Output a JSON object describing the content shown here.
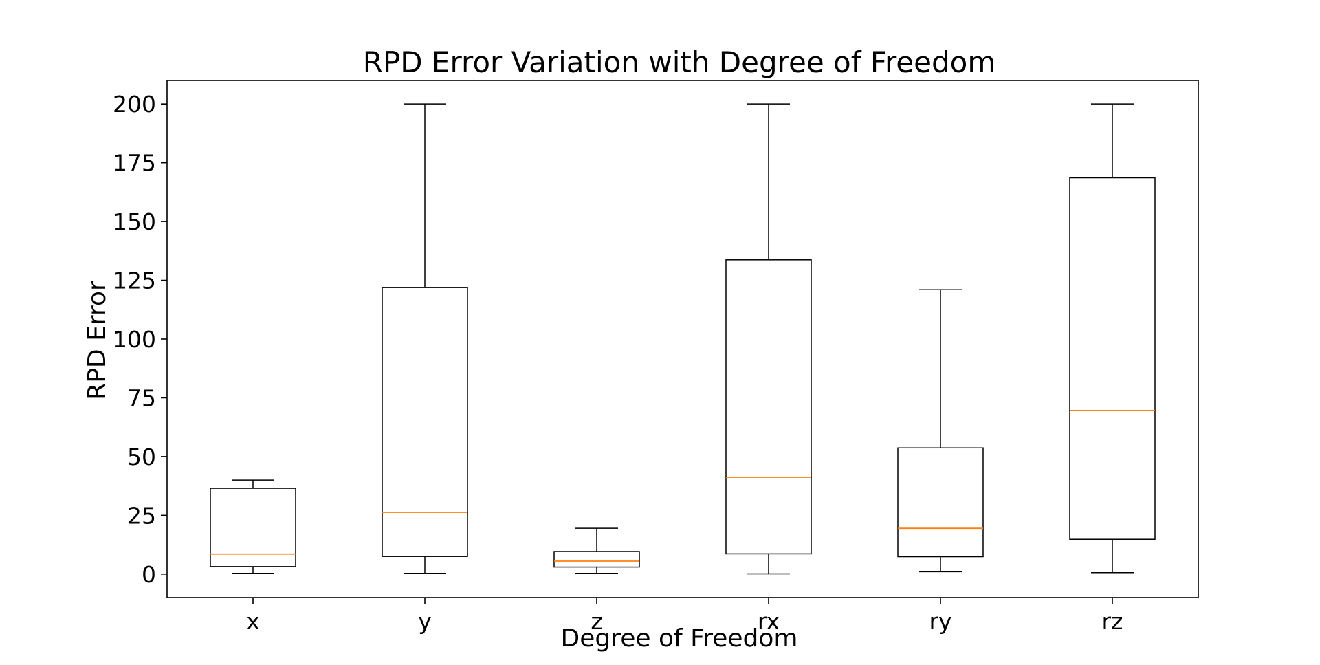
{
  "chart_data": {
    "type": "box",
    "title": "RPD Error Variation with Degree of Freedom",
    "xlabel": "Degree of Freedom",
    "ylabel": "RPD Error",
    "ylim": [
      -10,
      210
    ],
    "yticks": [
      0,
      25,
      50,
      75,
      100,
      125,
      150,
      175,
      200
    ],
    "grid": false,
    "legend": "none",
    "colors": {
      "box": "#000000",
      "median": "#ff7f0e"
    },
    "categories": [
      "x",
      "y",
      "z",
      "rx",
      "ry",
      "rz"
    ],
    "boxes": [
      {
        "label": "x",
        "whisker_low": 0.3,
        "q1": 3.2,
        "median": 8.5,
        "q3": 36.5,
        "whisker_high": 40.0
      },
      {
        "label": "y",
        "whisker_low": 0.3,
        "q1": 7.5,
        "median": 26.3,
        "q3": 121.9,
        "whisker_high": 200.0
      },
      {
        "label": "z",
        "whisker_low": 0.3,
        "q1": 3.0,
        "median": 5.5,
        "q3": 9.6,
        "whisker_high": 19.5
      },
      {
        "label": "rx",
        "whisker_low": 0.1,
        "q1": 8.6,
        "median": 41.2,
        "q3": 133.7,
        "whisker_high": 200.0
      },
      {
        "label": "ry",
        "whisker_low": 1.0,
        "q1": 7.4,
        "median": 19.5,
        "q3": 53.7,
        "whisker_high": 121.0
      },
      {
        "label": "rz",
        "whisker_low": 0.6,
        "q1": 14.8,
        "median": 69.6,
        "q3": 168.6,
        "whisker_high": 200.0
      }
    ]
  }
}
